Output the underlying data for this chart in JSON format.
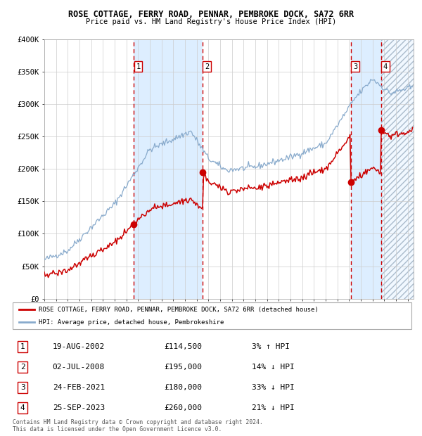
{
  "title": "ROSE COTTAGE, FERRY ROAD, PENNAR, PEMBROKE DOCK, SA72 6RR",
  "subtitle": "Price paid vs. HM Land Registry's House Price Index (HPI)",
  "legend_line1": "ROSE COTTAGE, FERRY ROAD, PENNAR, PEMBROKE DOCK, SA72 6RR (detached house)",
  "legend_line2": "HPI: Average price, detached house, Pembrokeshire",
  "footer1": "Contains HM Land Registry data © Crown copyright and database right 2024.",
  "footer2": "This data is licensed under the Open Government Licence v3.0.",
  "sale_color": "#cc0000",
  "hpi_color": "#88aacc",
  "bg_color": "#ddeeff",
  "ylim": [
    0,
    400000
  ],
  "yticks": [
    0,
    50000,
    100000,
    150000,
    200000,
    250000,
    300000,
    350000,
    400000
  ],
  "ytick_labels": [
    "£0",
    "£50K",
    "£100K",
    "£150K",
    "£200K",
    "£250K",
    "£300K",
    "£350K",
    "£400K"
  ],
  "sales": [
    {
      "num": 1,
      "date_num": 2002.64,
      "price": 114500,
      "label": "19-AUG-2002",
      "pct": "3%",
      "dir": "↑"
    },
    {
      "num": 2,
      "date_num": 2008.5,
      "price": 195000,
      "label": "02-JUL-2008",
      "pct": "14%",
      "dir": "↓"
    },
    {
      "num": 3,
      "date_num": 2021.15,
      "price": 180000,
      "label": "24-FEB-2021",
      "pct": "33%",
      "dir": "↓"
    },
    {
      "num": 4,
      "date_num": 2023.73,
      "price": 260000,
      "label": "25-SEP-2023",
      "pct": "21%",
      "dir": "↓"
    }
  ],
  "xmin": 1995.0,
  "xmax": 2026.5
}
